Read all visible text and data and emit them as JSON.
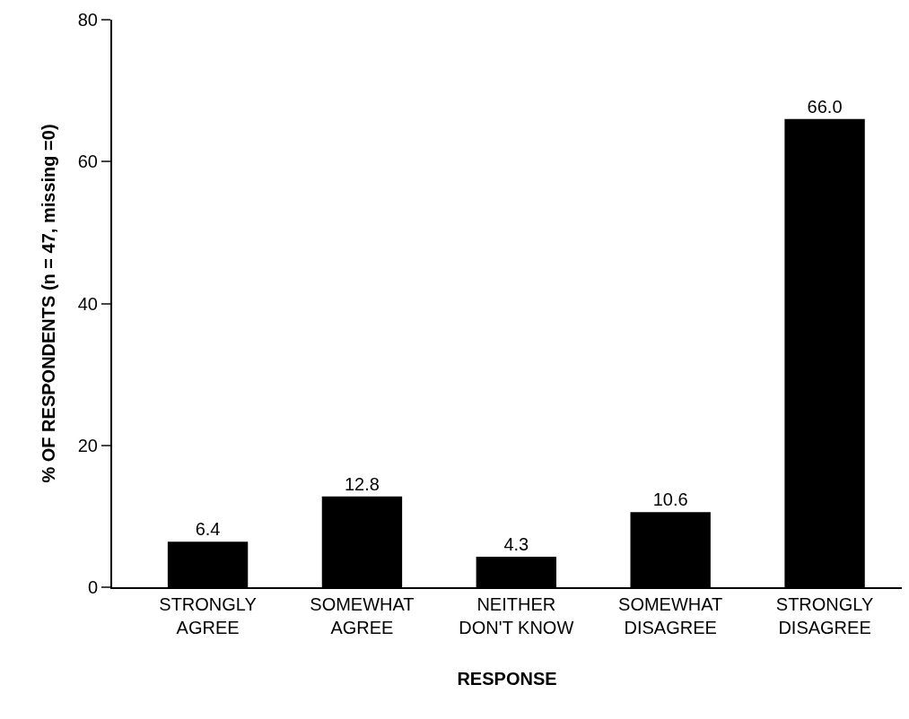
{
  "chart_data": {
    "type": "bar",
    "xlabel": "RESPONSE",
    "ylabel": "% OF RESPONDENTS (n = 47, missing =0)",
    "categories": [
      "STRONGLY\nAGREE",
      "SOMEWHAT\nAGREE",
      "NEITHER\nDON'T KNOW",
      "SOMEWHAT\nDISAGREE",
      "STRONGLY\nDISAGREE"
    ],
    "values": [
      6.4,
      12.8,
      4.3,
      10.6,
      66.0
    ],
    "value_labels": [
      "6.4",
      "12.8",
      "4.3",
      "10.6",
      "66.0"
    ],
    "color": "#000000",
    "ylim": [
      0,
      80
    ],
    "yticks": [
      0,
      20,
      40,
      60,
      80
    ]
  }
}
